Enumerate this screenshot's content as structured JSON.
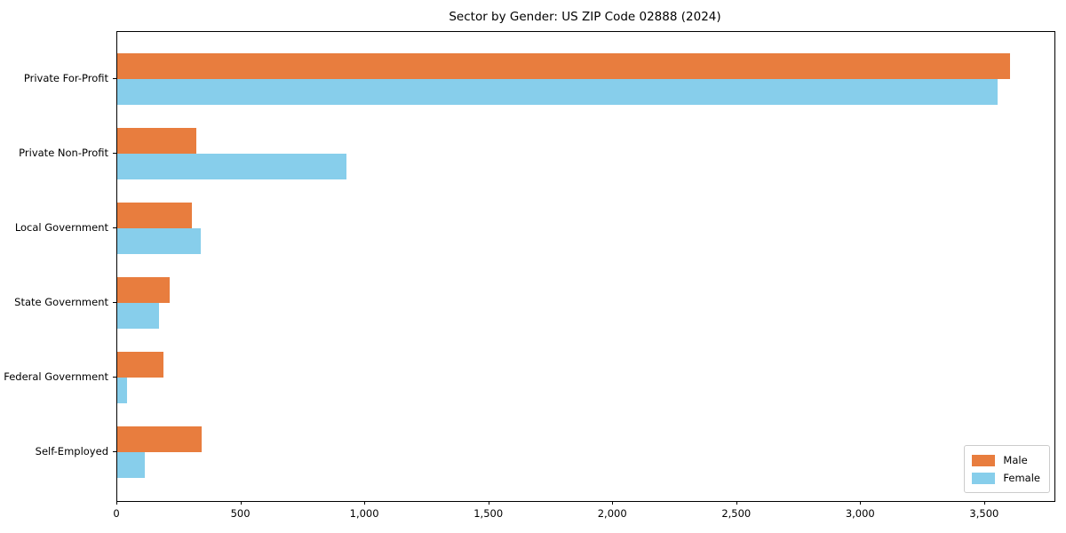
{
  "chart_data": {
    "type": "bar",
    "orientation": "horizontal",
    "title": "Sector by Gender: US ZIP Code 02888 (2024)",
    "categories": [
      "Private For-Profit",
      "Private Non-Profit",
      "Local Government",
      "State Government",
      "Federal Government",
      "Self-Employed"
    ],
    "series": [
      {
        "name": "Male",
        "color": "#e87d3e",
        "values": [
          3600,
          320,
          300,
          210,
          185,
          340
        ]
      },
      {
        "name": "Female",
        "color": "#87ceeb",
        "values": [
          3550,
          925,
          335,
          170,
          40,
          110
        ]
      }
    ],
    "xlabel": "",
    "ylabel": "",
    "xlim": [
      0,
      3780
    ],
    "x_ticks": [
      0,
      500,
      1000,
      1500,
      2000,
      2500,
      3000,
      3500
    ],
    "x_tick_labels": [
      "0",
      "500",
      "1,000",
      "1,500",
      "2,000",
      "2,500",
      "3,000",
      "3,500"
    ],
    "grid": false,
    "legend": {
      "position": "lower right"
    }
  },
  "colors": {
    "spine": "#000000",
    "legend_border": "#cccccc",
    "background": "#ffffff"
  }
}
